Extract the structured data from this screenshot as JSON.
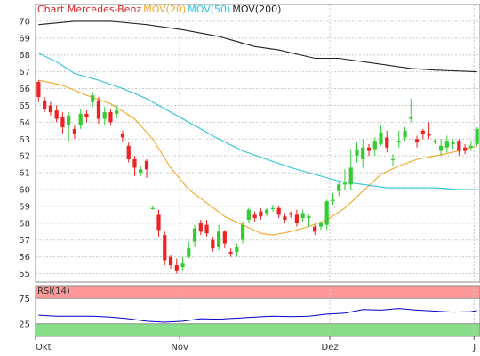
{
  "chart_data": {
    "type": "candlestick",
    "legend": [
      {
        "label": "Chart Mercedes-Benz",
        "color": "#d62728"
      },
      {
        "label": "MOV(20)",
        "color": "#f5a623"
      },
      {
        "label": "MOV(50)",
        "color": "#2bc4d8"
      },
      {
        "label": "MOV(200)",
        "color": "#222222"
      }
    ],
    "price_axis": {
      "ylim": [
        54.5,
        71
      ],
      "ticks": [
        55,
        56,
        57,
        58,
        59,
        60,
        61,
        62,
        63,
        64,
        65,
        66,
        67,
        68,
        69,
        70
      ]
    },
    "x_ticks": [
      "Okt",
      "Nov",
      "Dez",
      "J"
    ],
    "x_tick_days": [
      0,
      24,
      49,
      73
    ],
    "n_days": 74,
    "candles": [
      [
        0,
        66.4,
        65.5,
        66.5,
        65.2
      ],
      [
        1,
        65.3,
        64.8,
        65.5,
        64.6
      ],
      [
        2,
        65.0,
        64.6,
        65.2,
        64.4
      ],
      [
        3,
        64.7,
        64.2,
        65.0,
        64.0
      ],
      [
        4,
        64.3,
        63.7,
        64.6,
        63.3
      ],
      [
        5,
        63.8,
        64.4,
        64.6,
        62.8
      ],
      [
        6,
        63.6,
        63.3,
        63.8,
        63.0
      ],
      [
        7,
        63.8,
        64.5,
        64.8,
        63.6
      ],
      [
        8,
        64.5,
        64.3,
        64.7,
        64.0
      ],
      [
        9,
        65.2,
        65.6,
        65.8,
        64.9
      ],
      [
        10,
        65.3,
        64.2,
        65.5,
        63.9
      ],
      [
        11,
        64.2,
        64.6,
        64.9,
        63.8
      ],
      [
        12,
        64.6,
        64.0,
        64.8,
        63.8
      ],
      [
        13,
        64.5,
        64.7,
        65.0,
        64.2
      ],
      [
        14,
        63.3,
        63.1,
        63.5,
        62.8
      ],
      [
        15,
        62.6,
        61.8,
        62.8,
        61.6
      ],
      [
        16,
        61.8,
        61.3,
        62.0,
        60.8
      ],
      [
        17,
        61.0,
        61.2,
        61.4,
        60.8
      ],
      [
        18,
        61.7,
        61.2,
        61.8,
        60.7
      ],
      [
        19,
        58.9,
        58.9,
        59.0,
        58.8
      ],
      [
        20,
        58.5,
        57.6,
        58.8,
        57.2
      ],
      [
        21,
        57.3,
        55.8,
        57.5,
        55.5
      ],
      [
        22,
        56.0,
        55.5,
        56.1,
        55.3
      ],
      [
        23,
        55.5,
        55.2,
        55.9,
        55.0
      ],
      [
        24,
        55.4,
        55.6,
        56.0,
        55.2
      ],
      [
        25,
        56.0,
        56.5,
        56.9,
        55.9
      ],
      [
        26,
        56.9,
        57.7,
        57.9,
        56.6
      ],
      [
        27,
        58.0,
        57.5,
        58.2,
        57.3
      ],
      [
        28,
        57.9,
        57.4,
        58.2,
        57.2
      ],
      [
        29,
        57.0,
        56.5,
        57.2,
        56.3
      ],
      [
        30,
        56.6,
        57.5,
        57.9,
        56.4
      ],
      [
        31,
        57.5,
        56.8,
        57.6,
        56.5
      ],
      [
        32,
        56.3,
        56.2,
        56.5,
        56.0
      ],
      [
        33,
        56.3,
        56.6,
        56.8,
        56.0
      ],
      [
        34,
        57.0,
        57.9,
        58.1,
        56.8
      ],
      [
        35,
        58.2,
        58.8,
        58.9,
        58.0
      ],
      [
        36,
        58.5,
        58.3,
        58.7,
        58.1
      ],
      [
        37,
        58.7,
        58.4,
        58.9,
        58.2
      ],
      [
        38,
        58.6,
        58.8,
        58.9,
        58.4
      ],
      [
        39,
        58.9,
        58.9,
        59.1,
        58.7
      ],
      [
        40,
        58.9,
        58.5,
        59.0,
        58.3
      ],
      [
        41,
        58.4,
        58.2,
        58.6,
        58.0
      ],
      [
        42,
        58.6,
        58.5,
        58.7,
        58.3
      ],
      [
        43,
        58.5,
        58.0,
        58.8,
        57.8
      ],
      [
        44,
        58.3,
        58.6,
        58.8,
        58.1
      ],
      [
        45,
        58.3,
        58.4,
        58.5,
        57.8
      ],
      [
        46,
        57.8,
        57.5,
        57.9,
        57.3
      ],
      [
        47,
        57.8,
        58.0,
        58.1,
        57.6
      ],
      [
        48,
        57.9,
        59.3,
        59.4,
        57.6
      ],
      [
        49,
        59.3,
        59.4,
        59.8,
        59.1
      ],
      [
        50,
        59.9,
        60.3,
        60.5,
        59.6
      ],
      [
        51,
        60.3,
        60.4,
        61.2,
        60.0
      ],
      [
        52,
        60.3,
        61.3,
        62.4,
        60.0
      ],
      [
        53,
        62.0,
        62.4,
        62.8,
        61.6
      ],
      [
        54,
        61.8,
        62.5,
        63.0,
        61.3
      ],
      [
        55,
        62.5,
        62.3,
        62.7,
        62.0
      ],
      [
        56,
        62.4,
        62.9,
        63.1,
        62.0
      ],
      [
        57,
        62.7,
        63.4,
        63.8,
        62.6
      ],
      [
        58,
        63.1,
        62.5,
        63.5,
        62.2
      ],
      [
        59,
        61.8,
        61.8,
        62.1,
        61.4
      ],
      [
        60,
        62.8,
        62.9,
        63.5,
        62.5
      ],
      [
        61,
        63.1,
        63.5,
        63.7,
        62.9
      ],
      [
        62,
        64.2,
        64.3,
        65.4,
        64.0
      ],
      [
        63,
        63.0,
        62.8,
        63.2,
        62.5
      ],
      [
        64,
        63.5,
        63.3,
        63.6,
        63.0
      ],
      [
        65,
        63.3,
        63.2,
        64.0,
        63.0
      ],
      [
        66,
        62.9,
        62.9,
        63.0,
        62.7
      ],
      [
        67,
        62.3,
        62.6,
        63.0,
        62.0
      ],
      [
        68,
        62.5,
        62.9,
        63.2,
        62.2
      ],
      [
        69,
        62.7,
        62.8,
        63.0,
        62.4
      ],
      [
        70,
        62.9,
        62.3,
        63.0,
        62.0
      ],
      [
        71,
        62.5,
        62.3,
        62.7,
        62.1
      ],
      [
        72,
        62.5,
        62.6,
        62.9,
        62.3
      ],
      [
        73,
        62.7,
        63.6,
        63.7,
        62.6
      ]
    ],
    "mov20": [
      [
        0,
        66.5
      ],
      [
        4,
        66.2
      ],
      [
        8,
        65.6
      ],
      [
        12,
        65.1
      ],
      [
        16,
        64.2
      ],
      [
        19,
        63.0
      ],
      [
        22,
        61.3
      ],
      [
        25,
        60.0
      ],
      [
        28,
        59.2
      ],
      [
        31,
        58.4
      ],
      [
        34,
        57.9
      ],
      [
        37,
        57.4
      ],
      [
        39,
        57.3
      ],
      [
        42,
        57.5
      ],
      [
        45,
        57.8
      ],
      [
        48,
        58.2
      ],
      [
        51,
        58.9
      ],
      [
        54,
        59.9
      ],
      [
        57,
        60.9
      ],
      [
        60,
        61.4
      ],
      [
        63,
        61.8
      ],
      [
        66,
        62.0
      ],
      [
        70,
        62.3
      ],
      [
        73,
        62.6
      ]
    ],
    "mov50": [
      [
        0,
        68.1
      ],
      [
        3,
        67.6
      ],
      [
        6,
        66.9
      ],
      [
        10,
        66.5
      ],
      [
        14,
        66.0
      ],
      [
        18,
        65.4
      ],
      [
        22,
        64.6
      ],
      [
        26,
        63.8
      ],
      [
        30,
        63.0
      ],
      [
        34,
        62.3
      ],
      [
        38,
        61.8
      ],
      [
        42,
        61.3
      ],
      [
        46,
        60.9
      ],
      [
        50,
        60.5
      ],
      [
        54,
        60.3
      ],
      [
        58,
        60.1
      ],
      [
        62,
        60.1
      ],
      [
        66,
        60.1
      ],
      [
        70,
        60.0
      ],
      [
        73,
        60.0
      ]
    ],
    "mov200": [
      [
        0,
        69.8
      ],
      [
        6,
        70.0
      ],
      [
        12,
        70.0
      ],
      [
        18,
        69.8
      ],
      [
        24,
        69.5
      ],
      [
        30,
        69.1
      ],
      [
        36,
        68.5
      ],
      [
        40,
        68.3
      ],
      [
        46,
        67.8
      ],
      [
        50,
        67.8
      ],
      [
        56,
        67.5
      ],
      [
        62,
        67.2
      ],
      [
        66,
        67.1
      ],
      [
        73,
        67.0
      ]
    ],
    "rsi": {
      "label": "RSI(14)",
      "ylim": [
        0,
        100
      ],
      "ticks": [
        25,
        75
      ],
      "bands": {
        "overbought": 75,
        "oversold": 25
      },
      "values": [
        [
          0,
          42
        ],
        [
          3,
          40
        ],
        [
          6,
          40
        ],
        [
          9,
          40
        ],
        [
          12,
          38
        ],
        [
          15,
          35
        ],
        [
          18,
          30
        ],
        [
          21,
          28
        ],
        [
          24,
          30
        ],
        [
          27,
          35
        ],
        [
          30,
          34
        ],
        [
          33,
          36
        ],
        [
          36,
          38
        ],
        [
          39,
          40
        ],
        [
          42,
          39
        ],
        [
          45,
          40
        ],
        [
          48,
          44
        ],
        [
          51,
          46
        ],
        [
          54,
          53
        ],
        [
          57,
          52
        ],
        [
          60,
          55
        ],
        [
          63,
          52
        ],
        [
          66,
          50
        ],
        [
          69,
          48
        ],
        [
          72,
          49
        ],
        [
          73,
          51
        ]
      ]
    },
    "colors": {
      "up": "#33cc33",
      "down": "#ee2222",
      "grid": "#c8c8c8",
      "overbought_band": "#ff9999",
      "oversold_band": "#88dd88",
      "rsi_line": "#0000cc"
    }
  }
}
